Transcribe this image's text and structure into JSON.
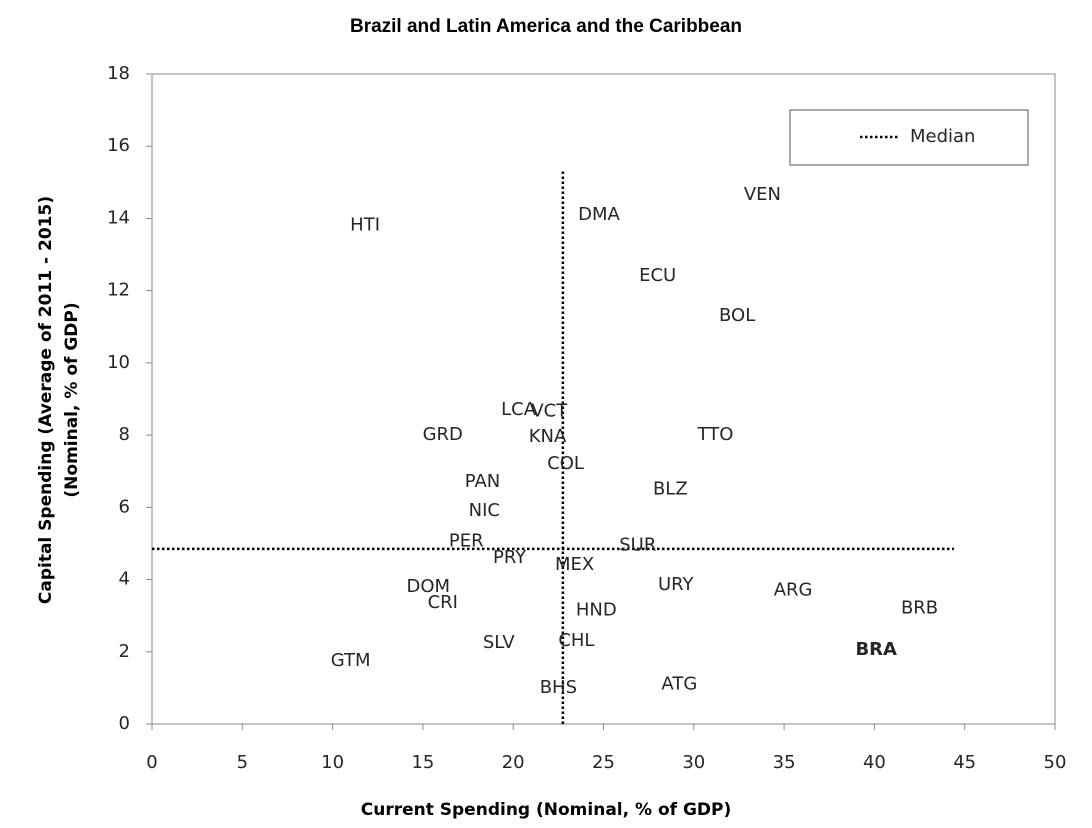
{
  "chart_data": {
    "type": "scatter",
    "title": "Brazil and Latin America and the Caribbean",
    "x_label": "Current Spending (Nominal, % of GDP)",
    "y_label": [
      "Capital Spending (Average of 2011  - 2015)",
      "(Nominal, % of GDP)"
    ],
    "xlim": [
      0,
      50
    ],
    "xticks": [
      0,
      5,
      10,
      15,
      20,
      25,
      30,
      35,
      40,
      45,
      50
    ],
    "ylim": [
      0,
      18
    ],
    "yticks": [
      0,
      2,
      4,
      6,
      8,
      10,
      12,
      14,
      16,
      18
    ],
    "legend": "top-right",
    "series": [
      {
        "color": "#262626",
        "highlight": "BRA",
        "highlight_color": "#c00000",
        "labels": [
          "HTI",
          "DMA",
          "VEN",
          "ECU",
          "BOL",
          "LCA",
          "VCT",
          "GRD",
          "KNA",
          "TTO",
          "COL",
          "PAN",
          "BLZ",
          "NIC",
          "PER",
          "SUR",
          "PRY",
          "MEX",
          "DOM",
          "URY",
          "ARG",
          "CRI",
          "HND",
          "BRB",
          "SLV",
          "CHL",
          "BRA",
          "GTM",
          "ATG",
          "BHS"
        ],
        "x": [
          11.8,
          24.75,
          33.8,
          28.0,
          32.4,
          20.3,
          22.0,
          16.1,
          21.9,
          31.2,
          22.9,
          18.3,
          28.7,
          18.4,
          17.4,
          26.9,
          19.8,
          23.4,
          15.3,
          29.0,
          35.5,
          16.1,
          24.6,
          42.5,
          19.2,
          23.5,
          40.1,
          11.0,
          29.2,
          22.5
        ],
        "values": [
          13.8,
          14.1,
          14.65,
          12.4,
          11.3,
          8.7,
          8.65,
          8.0,
          7.95,
          8.0,
          7.2,
          6.7,
          6.5,
          5.9,
          5.05,
          4.95,
          4.6,
          4.4,
          3.8,
          3.85,
          3.7,
          3.35,
          3.15,
          3.2,
          2.25,
          2.3,
          2.05,
          1.75,
          1.1,
          1.0
        ]
      }
    ],
    "median": {
      "name": "Median",
      "color": "#000000",
      "x": 22.75,
      "y": 4.85,
      "x_extent": [
        0,
        44.4
      ],
      "y_extent": [
        0,
        15.3
      ]
    }
  }
}
